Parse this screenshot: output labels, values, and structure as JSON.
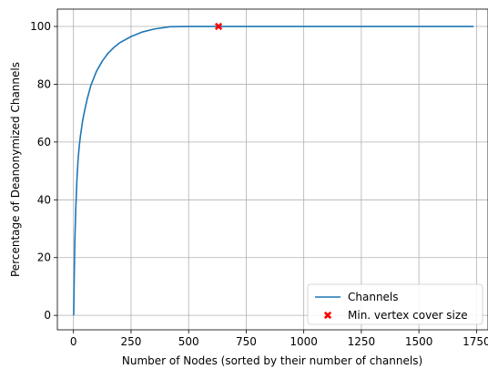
{
  "chart_data": {
    "type": "line",
    "title": "",
    "xlabel": "Number of Nodes (sorted by their number of channels)",
    "ylabel": "Percentage of Deanonymized Channels",
    "xlim": [
      -70,
      1800
    ],
    "ylim": [
      -5,
      106
    ],
    "x_ticks": [
      0,
      250,
      500,
      750,
      1000,
      1250,
      1500,
      1750
    ],
    "x_tick_labels": [
      "0",
      "250",
      "500",
      "750",
      "1000",
      "1250",
      "1500",
      "1750"
    ],
    "y_ticks": [
      0,
      20,
      40,
      60,
      80,
      100
    ],
    "y_tick_labels": [
      "0",
      "20",
      "40",
      "60",
      "80",
      "100"
    ],
    "grid": true,
    "legend_position": "lower-right",
    "series": [
      {
        "name": "Channels",
        "kind": "line",
        "color": "#1f77b4",
        "x": [
          1,
          3,
          6,
          10,
          15,
          20,
          25,
          30,
          40,
          50,
          60,
          75,
          90,
          100,
          125,
          150,
          175,
          200,
          250,
          300,
          350,
          420,
          500,
          600,
          700,
          900,
          1100,
          1300,
          1500,
          1737
        ],
        "y": [
          0,
          12,
          26,
          37,
          47,
          54,
          58.5,
          62,
          67.5,
          71.5,
          75,
          79.5,
          82.5,
          84.5,
          88,
          90.7,
          92.7,
          94.3,
          96.5,
          98.1,
          99.1,
          99.9,
          100,
          100,
          100,
          100,
          100,
          100,
          100,
          100
        ]
      },
      {
        "name": "Min. vertex cover size",
        "kind": "scatter",
        "marker": "x",
        "color": "#ff0000",
        "x": [
          630
        ],
        "y": [
          100
        ]
      }
    ]
  }
}
